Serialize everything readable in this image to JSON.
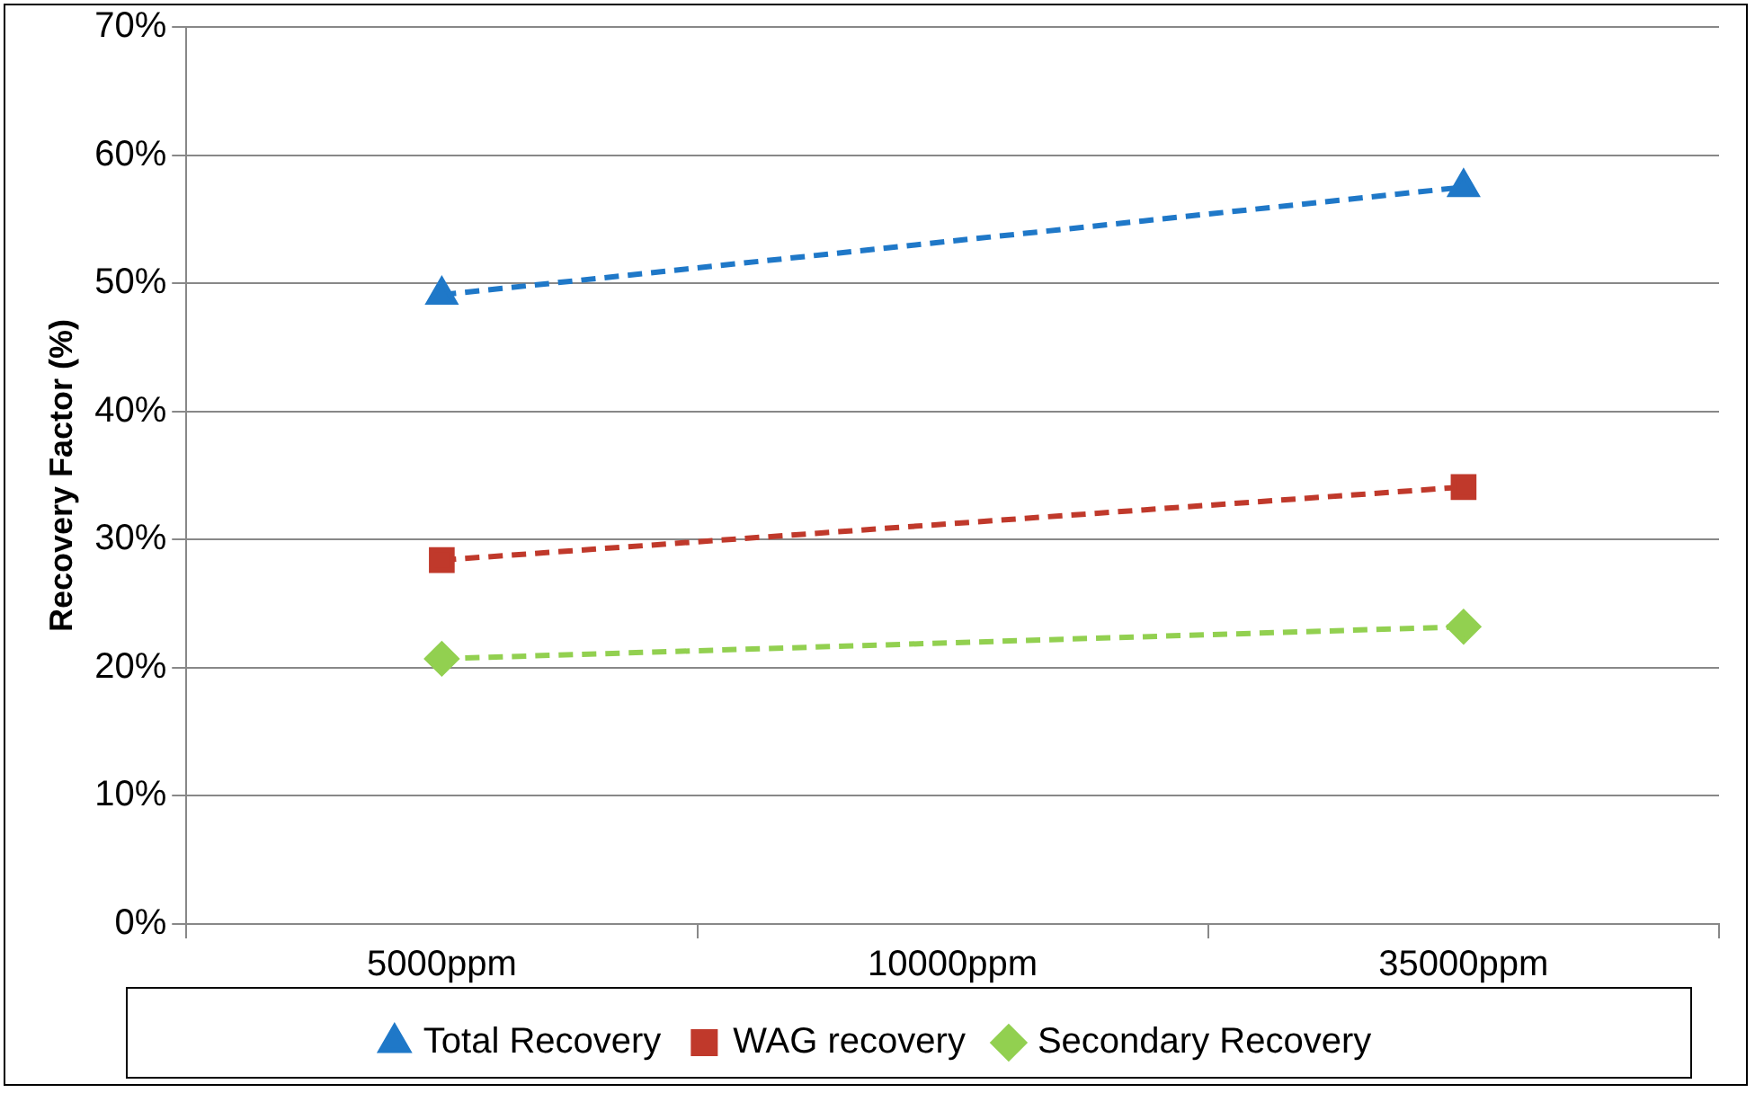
{
  "chart_data": {
    "type": "line",
    "ylabel": "Recovery Factor (%)",
    "categories": [
      "5000ppm",
      "10000ppm",
      "35000ppm"
    ],
    "series": [
      {
        "name": "Total Recovery",
        "color": "#1f78c8",
        "marker": "triangle",
        "values": [
          49.1,
          null,
          57.5
        ]
      },
      {
        "name": "WAG recovery",
        "color": "#c0392b",
        "marker": "square",
        "values": [
          28.4,
          null,
          34.1
        ]
      },
      {
        "name": "Secondary Recovery",
        "color": "#92d050",
        "marker": "diamond",
        "values": [
          20.7,
          null,
          23.2
        ]
      }
    ],
    "ylim": [
      0,
      70
    ],
    "yticks": [
      {
        "value": 0,
        "label": "0%"
      },
      {
        "value": 10,
        "label": "10%"
      },
      {
        "value": 20,
        "label": "20%"
      },
      {
        "value": 30,
        "label": "30%"
      },
      {
        "value": 40,
        "label": "40%"
      },
      {
        "value": 50,
        "label": "50%"
      },
      {
        "value": 60,
        "label": "60%"
      },
      {
        "value": 70,
        "label": "70%"
      }
    ],
    "grid": "y",
    "legend": "bottom",
    "line_style": "dashed"
  }
}
